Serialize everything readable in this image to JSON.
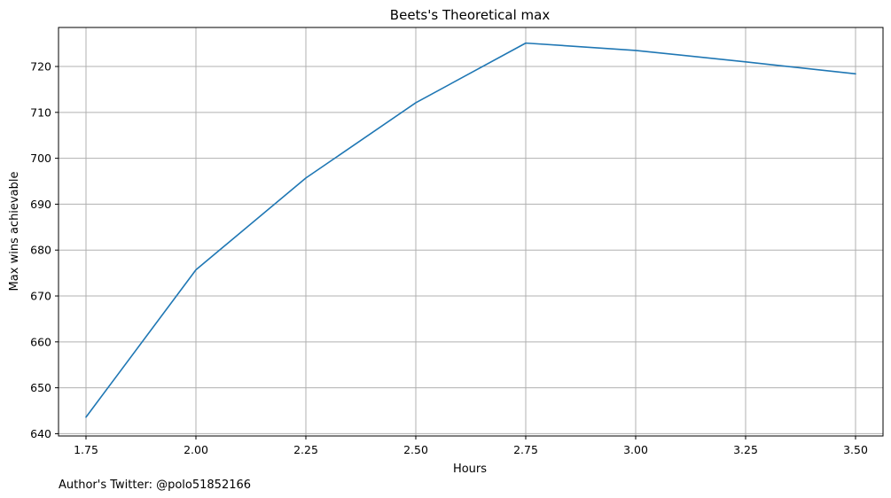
{
  "chart_data": {
    "type": "line",
    "title": "Beets's Theoretical max",
    "xlabel": "Hours",
    "ylabel": "Max wins achievable",
    "x": [
      1.75,
      2.0,
      2.25,
      2.5,
      2.75,
      3.0,
      3.25,
      3.5
    ],
    "x_tick_labels": [
      "1.75",
      "2.00",
      "2.25",
      "2.50",
      "2.75",
      "3.00",
      "3.25",
      "3.50"
    ],
    "y_ticks": [
      640,
      650,
      660,
      670,
      680,
      690,
      700,
      710,
      720
    ],
    "y_tick_labels": [
      "640",
      "650",
      "660",
      "670",
      "680",
      "690",
      "700",
      "710",
      "720"
    ],
    "series": [
      {
        "values": [
          643.6,
          675.7,
          695.7,
          712.1,
          725.1,
          723.5,
          721.0,
          718.4
        ],
        "color": "#1f77b4"
      }
    ],
    "xlim": [
      1.6875,
      3.5625
    ],
    "ylim": [
      639.5,
      728.5
    ],
    "grid": true,
    "legend": "none"
  },
  "footnote": "Author's Twitter: @polo51852166",
  "colors": {
    "line": "#1f77b4",
    "grid": "#b0b0b0",
    "axes": "#000000"
  }
}
